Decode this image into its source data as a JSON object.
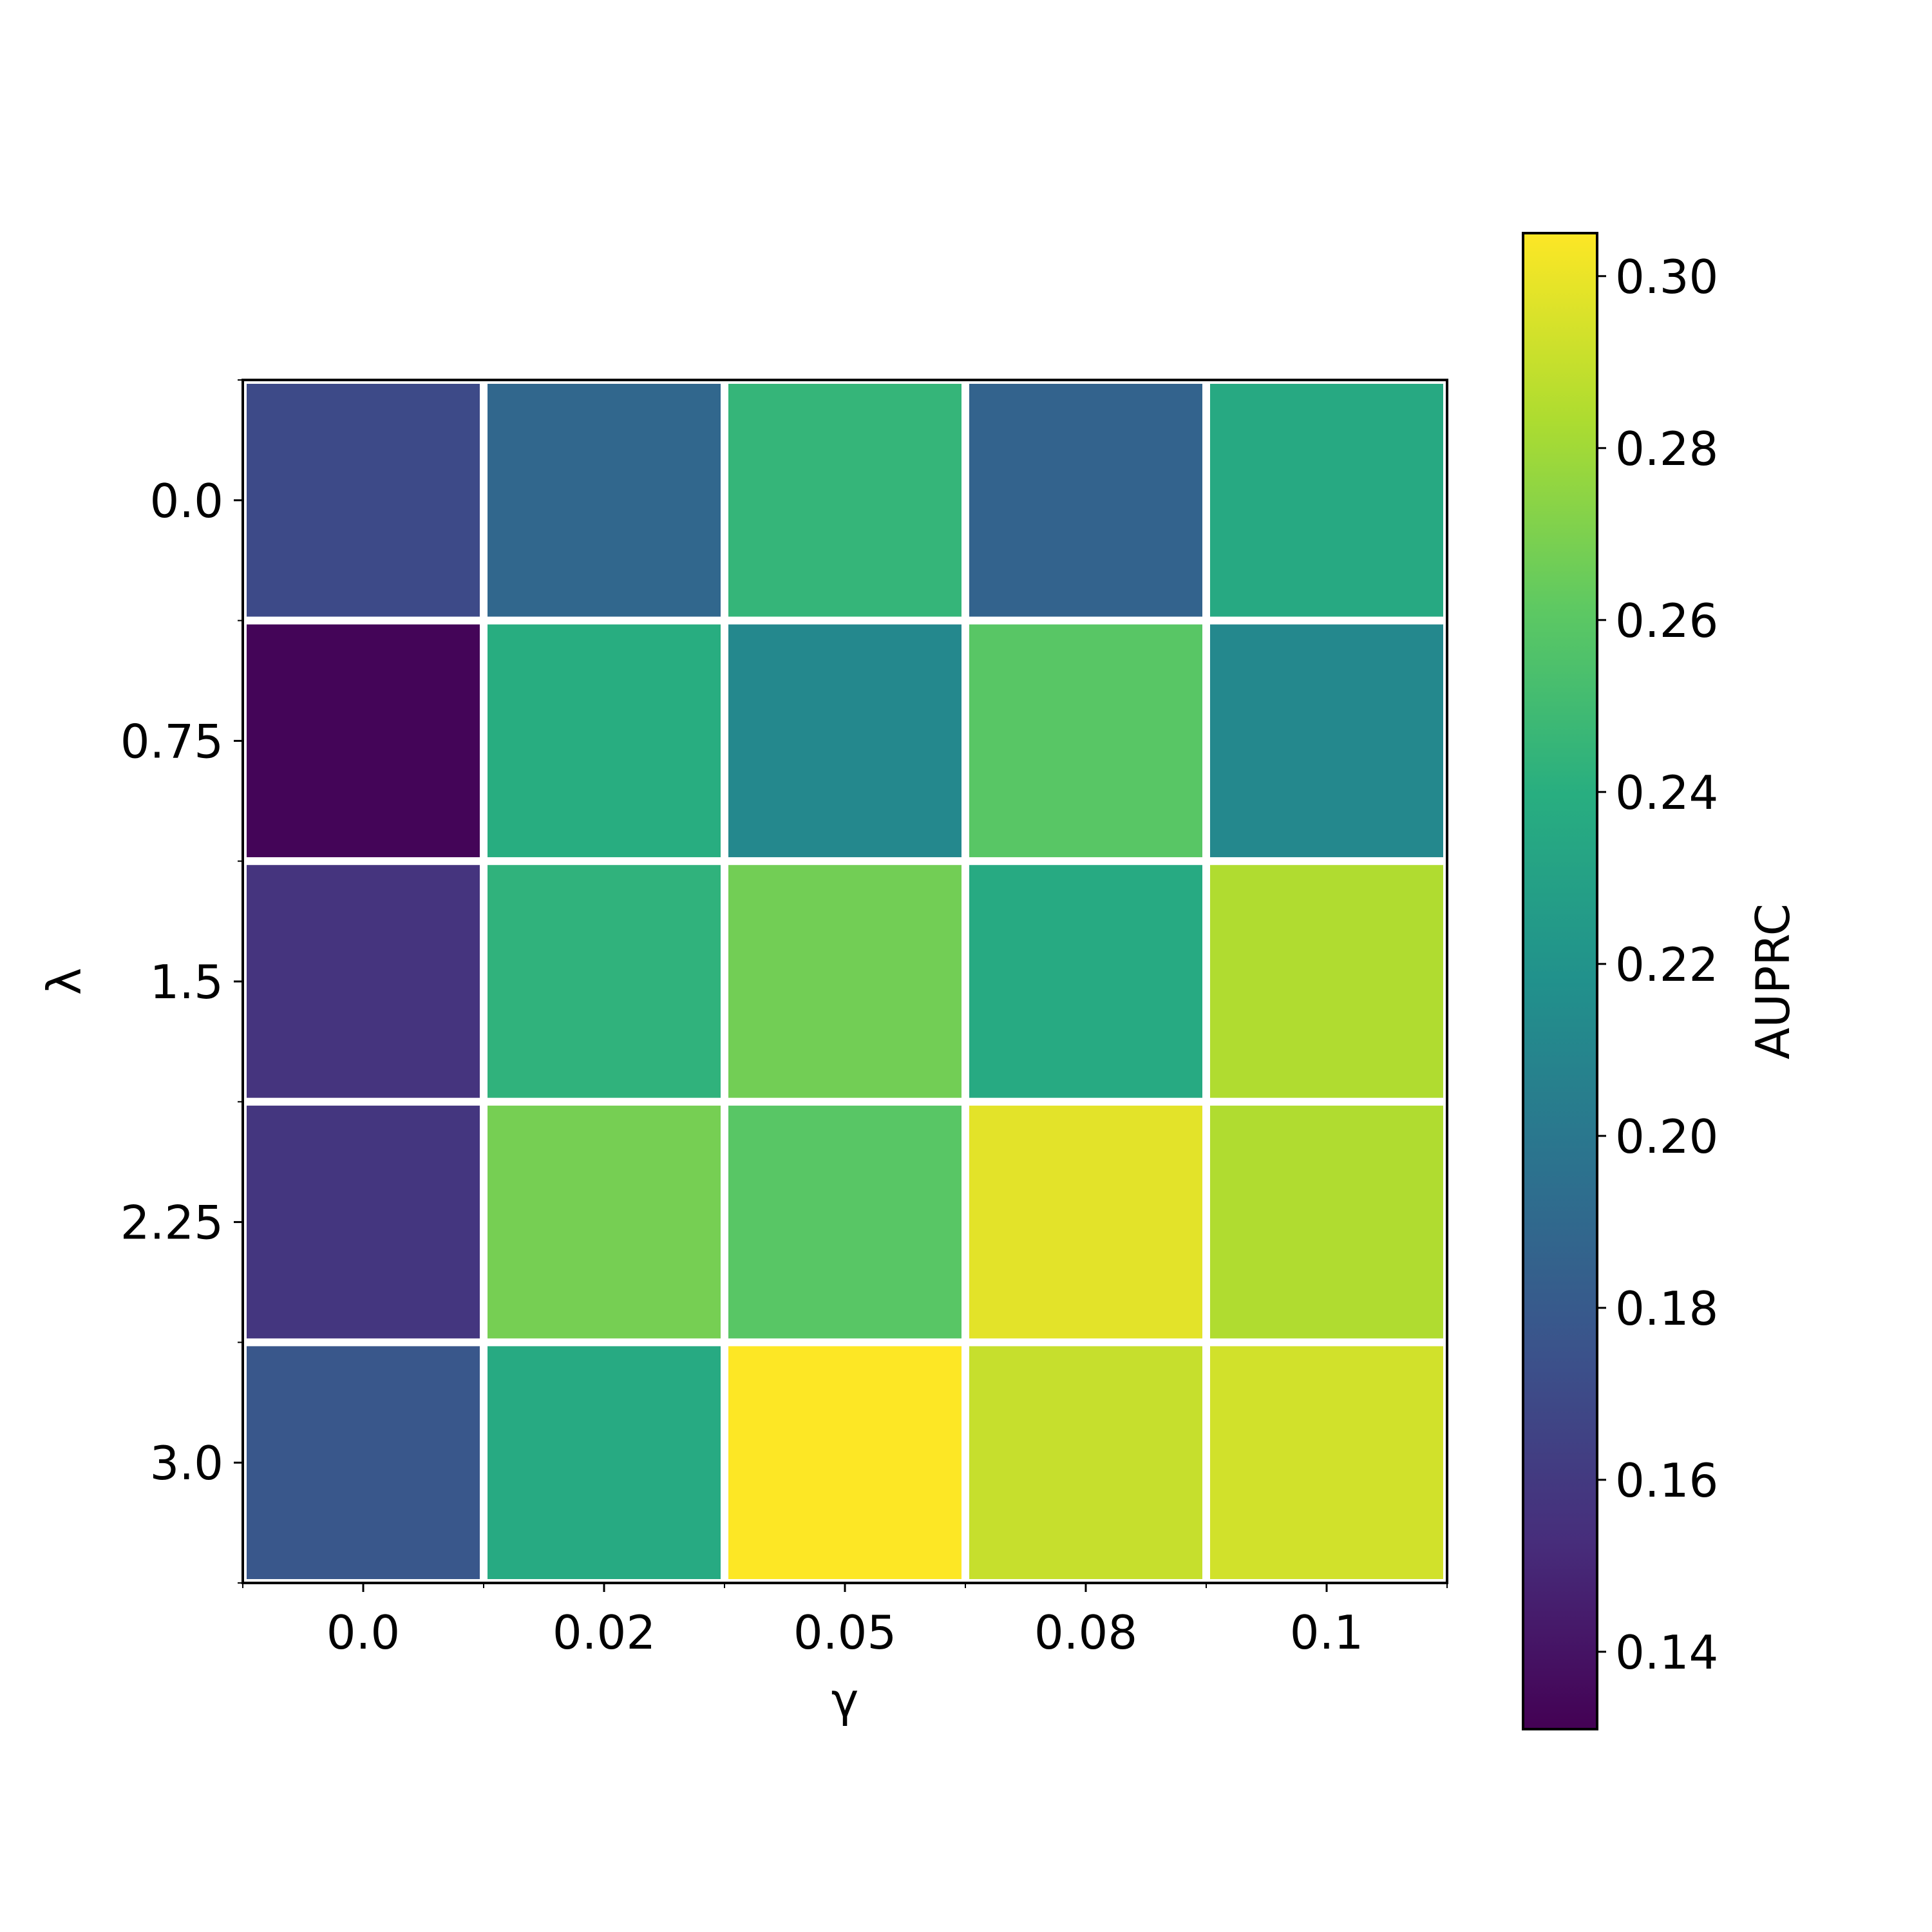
{
  "chart_data": {
    "type": "heatmap",
    "xlabel": "γ",
    "ylabel": "λ",
    "x_categories": [
      "0.0",
      "0.02",
      "0.05",
      "0.08",
      "0.1"
    ],
    "y_categories": [
      "0.0",
      "0.75",
      "1.5",
      "2.25",
      "3.0"
    ],
    "values": [
      [
        0.17,
        0.189,
        0.245,
        0.186,
        0.236
      ],
      [
        0.133,
        0.239,
        0.212,
        0.259,
        0.212
      ],
      [
        0.157,
        0.243,
        0.267,
        0.237,
        0.284
      ],
      [
        0.158,
        0.268,
        0.259,
        0.298,
        0.284
      ],
      [
        0.178,
        0.237,
        0.305,
        0.29,
        0.293
      ]
    ],
    "colorbar": {
      "label": "AUPRC",
      "min": 0.131,
      "max": 0.305,
      "ticks": [
        "0.14",
        "0.16",
        "0.18",
        "0.20",
        "0.22",
        "0.24",
        "0.26",
        "0.28",
        "0.30"
      ],
      "colormap": "viridis"
    },
    "grid": true
  }
}
